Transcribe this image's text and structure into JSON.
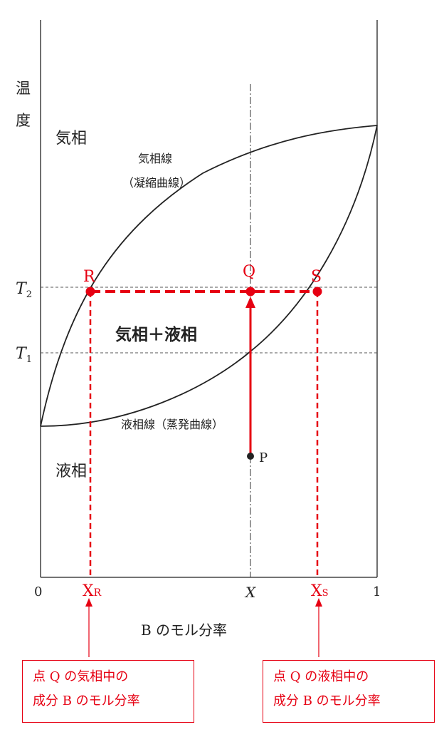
{
  "labels": {
    "y_axis_char1": "温",
    "y_axis_char2": "度",
    "t2_main": "T",
    "t2_sub": "2",
    "t1_main": "T",
    "t1_sub": "1",
    "x_min": "0",
    "x_max": "1",
    "x_mid": "X",
    "x_axis_title": "B のモル分率",
    "xr_main": "X",
    "xr_sub": "R",
    "xs_main": "X",
    "xs_sub": "S"
  },
  "regions": {
    "vapor": "気相",
    "liquid": "液相",
    "two_phase": "気相＋液相"
  },
  "curves": {
    "vapor_line": "気相線",
    "vapor_line_alt": "（凝縮曲線）",
    "liquid_line": "液相線（蒸発曲線）"
  },
  "points": {
    "R": "R",
    "Q": "Q",
    "S": "S",
    "P": "P"
  },
  "notes": {
    "left_line1": "点 Q の気相中の",
    "left_line2": "成分 B のモル分率",
    "right_line1": "点 Q の液相中の",
    "right_line2": "成分 B のモル分率"
  },
  "colors": {
    "annotation": "#e60012",
    "line": "#222222"
  }
}
